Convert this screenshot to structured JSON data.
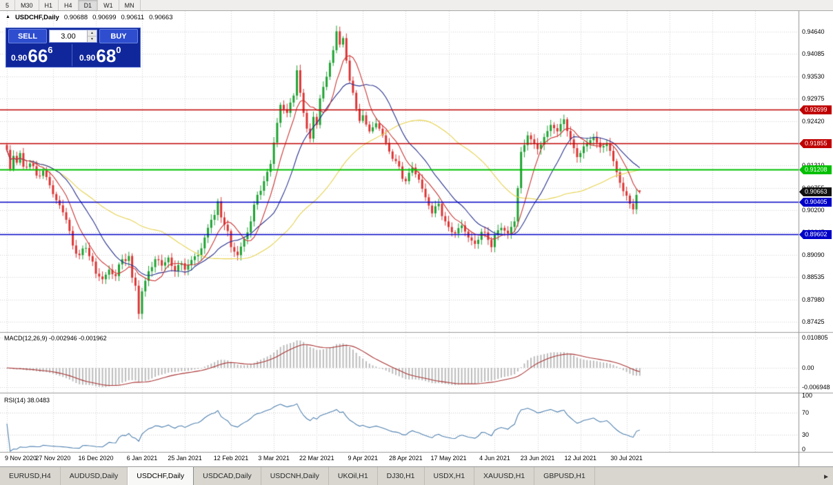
{
  "timeframe_bar": {
    "items": [
      "5",
      "M30",
      "H1",
      "H4",
      "D1",
      "W1",
      "MN"
    ],
    "active": "D1"
  },
  "chart_header": {
    "symbol": "USDCHF,Daily",
    "quotes": [
      "0.90688",
      "0.90699",
      "0.90611",
      "0.90663"
    ]
  },
  "trade_panel": {
    "sell_label": "SELL",
    "buy_label": "BUY",
    "volume": "3.00",
    "sell_price": {
      "prefix": "0.90",
      "big": "66",
      "sup": "6"
    },
    "buy_price": {
      "prefix": "0.90",
      "big": "68",
      "sup": "0"
    }
  },
  "icons": {
    "chart_expand": "▲",
    "spinner_up": "▲",
    "spinner_down": "▼",
    "tab_scroll_right": "►"
  },
  "price_axis": {
    "ticks": [
      "0.94640",
      "0.94085",
      "0.93530",
      "0.92975",
      "0.92420",
      "0.91865",
      "0.91310",
      "0.90755",
      "0.90200",
      "0.89645",
      "0.89090",
      "0.88535",
      "0.87980",
      "0.87425"
    ]
  },
  "current_price": {
    "label": "0.90663",
    "value": 0.90663,
    "color": "#111111"
  },
  "macd": {
    "name": "MACD(12,26,9)",
    "values": "-0.002946 -0.001962",
    "axis_ticks": [
      "0.010805",
      "0.00",
      "-0.006948"
    ]
  },
  "rsi": {
    "name": "RSI(14)",
    "value": "38.0483",
    "axis_ticks": [
      "100",
      "70",
      "30",
      "0"
    ],
    "levels": [
      70,
      30
    ]
  },
  "tabs": {
    "items": [
      "EURUSD,H4",
      "AUDUSD,Daily",
      "USDCHF,Daily",
      "USDCAD,Daily",
      "USDCNH,Daily",
      "UKOil,H1",
      "DJ30,H1",
      "USDX,H1",
      "XAUUSD,H1",
      "GBPUSD,H1"
    ],
    "active": "USDCHF,Daily"
  },
  "colors": {
    "bull": "#1fa333",
    "bear": "#dd3535",
    "ma_fast_red": "#cc3333",
    "ma_mid_navy": "#27308f",
    "ma_slow_yellow": "#e6d24e",
    "macd_hist": "#bcbcbc",
    "macd_signal": "#aa3333",
    "rsi_line": "#4f81b0",
    "grid": "#d4d4d4",
    "separator": "#9a9a9a"
  },
  "chart_data": {
    "type": "candlestick",
    "symbol": "USDCHF",
    "timeframe": "Daily",
    "candle_count": 193,
    "y_axis": {
      "min": 0.87425,
      "max": 0.9464,
      "tick_step": 0.00555
    },
    "last_ohlc": {
      "open": 0.90688,
      "high": 0.90699,
      "low": 0.90611,
      "close": 0.90663
    },
    "close_anchors": [
      [
        0,
        0.917
      ],
      [
        1,
        0.9122
      ],
      [
        2,
        0.9155
      ],
      [
        3,
        0.9138
      ],
      [
        4,
        0.9162
      ],
      [
        5,
        0.9128
      ],
      [
        7,
        0.9136
      ],
      [
        9,
        0.9106
      ],
      [
        11,
        0.9118
      ],
      [
        13,
        0.9082
      ],
      [
        14,
        0.906
      ],
      [
        16,
        0.9032
      ],
      [
        18,
        0.8996
      ],
      [
        20,
        0.8932
      ],
      [
        22,
        0.8908
      ],
      [
        24,
        0.8926
      ],
      [
        26,
        0.8892
      ],
      [
        27,
        0.8862
      ],
      [
        29,
        0.8848
      ],
      [
        31,
        0.8872
      ],
      [
        33,
        0.8856
      ],
      [
        35,
        0.8898
      ],
      [
        37,
        0.8906
      ],
      [
        38,
        0.8852
      ],
      [
        39,
        0.8832
      ],
      [
        40,
        0.8762
      ],
      [
        41,
        0.8818
      ],
      [
        43,
        0.8868
      ],
      [
        45,
        0.8898
      ],
      [
        47,
        0.8882
      ],
      [
        49,
        0.8902
      ],
      [
        51,
        0.8868
      ],
      [
        53,
        0.8888
      ],
      [
        54,
        0.8872
      ],
      [
        56,
        0.8896
      ],
      [
        58,
        0.8908
      ],
      [
        60,
        0.8952
      ],
      [
        62,
        0.8996
      ],
      [
        63,
        0.9008
      ],
      [
        64,
        0.9042
      ],
      [
        65,
        0.9002
      ],
      [
        67,
        0.8968
      ],
      [
        68,
        0.8928
      ],
      [
        70,
        0.8908
      ],
      [
        72,
        0.8948
      ],
      [
        74,
        0.8992
      ],
      [
        76,
        0.9058
      ],
      [
        78,
        0.9092
      ],
      [
        80,
        0.9135
      ],
      [
        81,
        0.9188
      ],
      [
        83,
        0.9282
      ],
      [
        85,
        0.9262
      ],
      [
        87,
        0.9305
      ],
      [
        88,
        0.9368
      ],
      [
        89,
        0.9312
      ],
      [
        90,
        0.9262
      ],
      [
        92,
        0.9198
      ],
      [
        93,
        0.9252
      ],
      [
        94,
        0.9232
      ],
      [
        95,
        0.9298
      ],
      [
        97,
        0.9352
      ],
      [
        99,
        0.9418
      ],
      [
        100,
        0.9465
      ],
      [
        101,
        0.9432
      ],
      [
        102,
        0.9448
      ],
      [
        103,
        0.9392
      ],
      [
        104,
        0.9342
      ],
      [
        105,
        0.9312
      ],
      [
        106,
        0.9272
      ],
      [
        107,
        0.9242
      ],
      [
        108,
        0.9256
      ],
      [
        110,
        0.9216
      ],
      [
        112,
        0.9236
      ],
      [
        114,
        0.9206
      ],
      [
        116,
        0.9166
      ],
      [
        118,
        0.9142
      ],
      [
        120,
        0.9098
      ],
      [
        121,
        0.9092
      ],
      [
        123,
        0.9126
      ],
      [
        125,
        0.9096
      ],
      [
        127,
        0.9052
      ],
      [
        129,
        0.9012
      ],
      [
        131,
        0.9036
      ],
      [
        133,
        0.8992
      ],
      [
        134,
        0.8978
      ],
      [
        136,
        0.8962
      ],
      [
        138,
        0.8982
      ],
      [
        140,
        0.8952
      ],
      [
        142,
        0.8936
      ],
      [
        144,
        0.8966
      ],
      [
        146,
        0.8946
      ],
      [
        147,
        0.8928
      ],
      [
        148,
        0.8958
      ],
      [
        150,
        0.8976
      ],
      [
        152,
        0.8962
      ],
      [
        154,
        0.8992
      ],
      [
        155,
        0.9075
      ],
      [
        156,
        0.9165
      ],
      [
        157,
        0.9182
      ],
      [
        158,
        0.9206
      ],
      [
        160,
        0.9186
      ],
      [
        161,
        0.9172
      ],
      [
        163,
        0.9202
      ],
      [
        165,
        0.9232
      ],
      [
        167,
        0.9216
      ],
      [
        169,
        0.9246
      ],
      [
        171,
        0.9196
      ],
      [
        173,
        0.9152
      ],
      [
        174,
        0.9162
      ],
      [
        176,
        0.9186
      ],
      [
        178,
        0.9202
      ],
      [
        180,
        0.9176
      ],
      [
        182,
        0.9186
      ],
      [
        184,
        0.9142
      ],
      [
        186,
        0.9088
      ],
      [
        188,
        0.9056
      ],
      [
        189,
        0.9036
      ],
      [
        190,
        0.9022
      ],
      [
        191,
        0.9058
      ],
      [
        192,
        0.90663
      ]
    ],
    "moving_averages": [
      {
        "period": 8,
        "color": "#cc3333"
      },
      {
        "period": 17,
        "color": "#27308f"
      },
      {
        "period": 48,
        "color": "#e6d24e"
      }
    ],
    "horizontal_lines": [
      {
        "label": "0.92699",
        "value": 0.92699,
        "color": "#c00000",
        "width": 1.3
      },
      {
        "label": "0.91855",
        "value": 0.91855,
        "color": "#c00000",
        "width": 1.3
      },
      {
        "label": "0.91208",
        "value": 0.91208,
        "color": "#00c000",
        "width": 2
      },
      {
        "label": "0.90405",
        "value": 0.90405,
        "color": "#0000c8",
        "width": 1.5
      },
      {
        "label": "0.89602",
        "value": 0.89602,
        "color": "#0000c8",
        "width": 1.5
      }
    ],
    "x_ticks": {
      "indices": [
        0,
        14,
        27,
        41,
        54,
        68,
        81,
        94,
        108,
        121,
        134,
        148,
        161,
        174,
        188
      ],
      "labels": [
        "9 Nov 2020",
        "27 Nov 2020",
        "16 Dec 2020",
        "6 Jan 2021",
        "25 Jan 2021",
        "12 Feb 2021",
        "3 Mar 2021",
        "22 Mar 2021",
        "9 Apr 2021",
        "28 Apr 2021",
        "17 May 2021",
        "4 Jun 2021",
        "23 Jun 2021",
        "12 Jul 2021",
        "30 Jul 2021"
      ]
    },
    "indicators": {
      "macd": {
        "fast": 12,
        "slow": 26,
        "signal": 9,
        "current": -0.002946,
        "current_signal": -0.001962
      },
      "rsi": {
        "period": 14,
        "current": 38.0483
      }
    }
  }
}
